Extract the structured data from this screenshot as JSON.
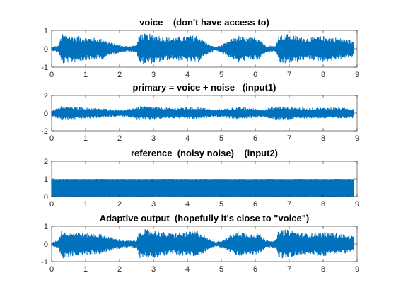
{
  "chart_data": [
    {
      "type": "line",
      "title": "voice    (don't have access to)",
      "xlabel": "",
      "ylabel": "",
      "xlim": [
        0,
        9
      ],
      "ylim": [
        -1,
        1
      ],
      "xticks": [
        0,
        1,
        2,
        3,
        4,
        5,
        6,
        7,
        8,
        9
      ],
      "yticks": [
        -1,
        0,
        1
      ],
      "grid": false,
      "series_color": "#0072bd",
      "signal_end_x": 8.9,
      "envelope": {
        "x": [
          0,
          0.2,
          0.3,
          0.5,
          1.0,
          1.5,
          1.8,
          2.2,
          2.5,
          2.6,
          3.0,
          3.5,
          4.0,
          4.3,
          4.6,
          4.8,
          5.0,
          5.5,
          5.8,
          6.1,
          6.3,
          6.6,
          6.7,
          7.0,
          7.5,
          8.0,
          8.3,
          8.6,
          8.9
        ],
        "amplitude": [
          0.1,
          0.2,
          0.85,
          0.75,
          0.65,
          0.55,
          0.3,
          0.15,
          0.2,
          0.85,
          0.8,
          0.6,
          0.7,
          0.75,
          0.3,
          0.1,
          0.2,
          0.75,
          0.6,
          0.65,
          0.2,
          0.15,
          0.85,
          0.8,
          0.6,
          0.7,
          0.65,
          0.55,
          0.45
        ]
      }
    },
    {
      "type": "line",
      "title": "primary = voice + noise   (input1)",
      "xlabel": "",
      "ylabel": "",
      "xlim": [
        0,
        9
      ],
      "ylim": [
        -2,
        2
      ],
      "xticks": [
        0,
        1,
        2,
        3,
        4,
        5,
        6,
        7,
        8,
        9
      ],
      "yticks": [
        -2,
        0,
        2
      ],
      "grid": false,
      "series_color": "#0072bd",
      "signal_end_x": 8.9,
      "envelope": {
        "x": [
          0,
          0.3,
          1.0,
          1.8,
          2.2,
          2.6,
          3.5,
          4.3,
          4.8,
          5.5,
          6.2,
          6.7,
          7.5,
          8.3,
          8.9
        ],
        "amplitude": [
          0.35,
          0.8,
          0.65,
          0.45,
          0.4,
          0.8,
          0.6,
          0.7,
          0.4,
          0.7,
          0.45,
          0.8,
          0.6,
          0.65,
          0.55
        ]
      }
    },
    {
      "type": "line",
      "title": "reference  (noisy noise)    (input2)",
      "xlabel": "",
      "ylabel": "",
      "xlim": [
        0,
        9
      ],
      "ylim": [
        0,
        2
      ],
      "xticks": [
        0,
        1,
        2,
        3,
        4,
        5,
        6,
        7,
        8,
        9
      ],
      "yticks": [
        0,
        1,
        2
      ],
      "grid": false,
      "series_color": "#0072bd",
      "signal_end_x": 8.9,
      "range": [
        0,
        1
      ]
    },
    {
      "type": "line",
      "title": "Adaptive output  (hopefully it's close to \"voice\")",
      "xlabel": "",
      "ylabel": "",
      "xlim": [
        0,
        9
      ],
      "ylim": [
        -1,
        1
      ],
      "xticks": [
        0,
        1,
        2,
        3,
        4,
        5,
        6,
        7,
        8,
        9
      ],
      "yticks": [
        -1,
        0,
        1
      ],
      "grid": false,
      "series_color": "#0072bd",
      "signal_end_x": 8.9,
      "envelope": {
        "x": [
          0,
          0.2,
          0.3,
          0.5,
          1.0,
          1.5,
          1.8,
          2.2,
          2.5,
          2.6,
          3.0,
          3.5,
          4.0,
          4.3,
          4.6,
          4.8,
          5.0,
          5.5,
          5.8,
          6.1,
          6.3,
          6.6,
          6.7,
          7.0,
          7.5,
          8.0,
          8.3,
          8.6,
          8.9
        ],
        "amplitude": [
          0.1,
          0.25,
          0.85,
          0.75,
          0.65,
          0.55,
          0.35,
          0.2,
          0.2,
          0.85,
          0.8,
          0.6,
          0.7,
          0.75,
          0.35,
          0.15,
          0.2,
          0.75,
          0.6,
          0.65,
          0.25,
          0.2,
          0.85,
          0.8,
          0.6,
          0.7,
          0.65,
          0.55,
          0.45
        ]
      }
    }
  ]
}
